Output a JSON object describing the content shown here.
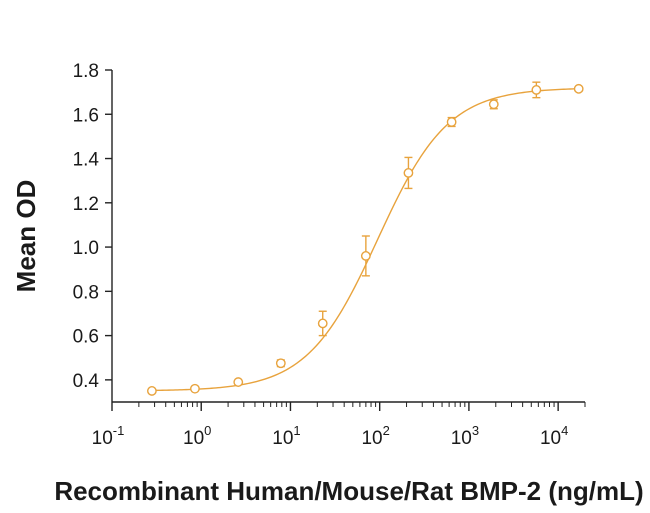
{
  "chart_data": {
    "type": "scatter",
    "title": "",
    "xlabel": "Recombinant Human/Mouse/Rat BMP-2 (ng/mL)",
    "ylabel": "Mean OD",
    "xscale": "log10",
    "xlim": [
      0.1,
      20000
    ],
    "ylim": [
      0.3,
      1.8
    ],
    "x_ticks": [
      {
        "base": "10",
        "exp": "-1",
        "value": 0.1
      },
      {
        "base": "10",
        "exp": "0",
        "value": 1
      },
      {
        "base": "10",
        "exp": "1",
        "value": 10
      },
      {
        "base": "10",
        "exp": "2",
        "value": 100
      },
      {
        "base": "10",
        "exp": "3",
        "value": 1000
      },
      {
        "base": "10",
        "exp": "4",
        "value": 10000
      }
    ],
    "y_ticks": [
      "0.4",
      "0.6",
      "0.8",
      "1.0",
      "1.2",
      "1.4",
      "1.6",
      "1.8"
    ],
    "series": [
      {
        "name": "BMP-2",
        "color": "#E8A33D",
        "points": [
          {
            "x": 0.28,
            "y": 0.35,
            "err": 0.0
          },
          {
            "x": 0.85,
            "y": 0.36,
            "err": 0.0
          },
          {
            "x": 2.6,
            "y": 0.39,
            "err": 0.0
          },
          {
            "x": 7.8,
            "y": 0.475,
            "err": 0.015
          },
          {
            "x": 23,
            "y": 0.655,
            "err": 0.055
          },
          {
            "x": 70,
            "y": 0.96,
            "err": 0.09
          },
          {
            "x": 210,
            "y": 1.335,
            "err": 0.07
          },
          {
            "x": 640,
            "y": 1.565,
            "err": 0.02
          },
          {
            "x": 1900,
            "y": 1.645,
            "err": 0.02
          },
          {
            "x": 5700,
            "y": 1.71,
            "err": 0.035
          },
          {
            "x": 17000,
            "y": 1.715,
            "err": 0.0
          }
        ],
        "fit": {
          "model": "4PL",
          "bottom": 0.35,
          "top": 1.72,
          "ec50": 95,
          "hill": 1.1
        }
      }
    ],
    "grid": false
  }
}
